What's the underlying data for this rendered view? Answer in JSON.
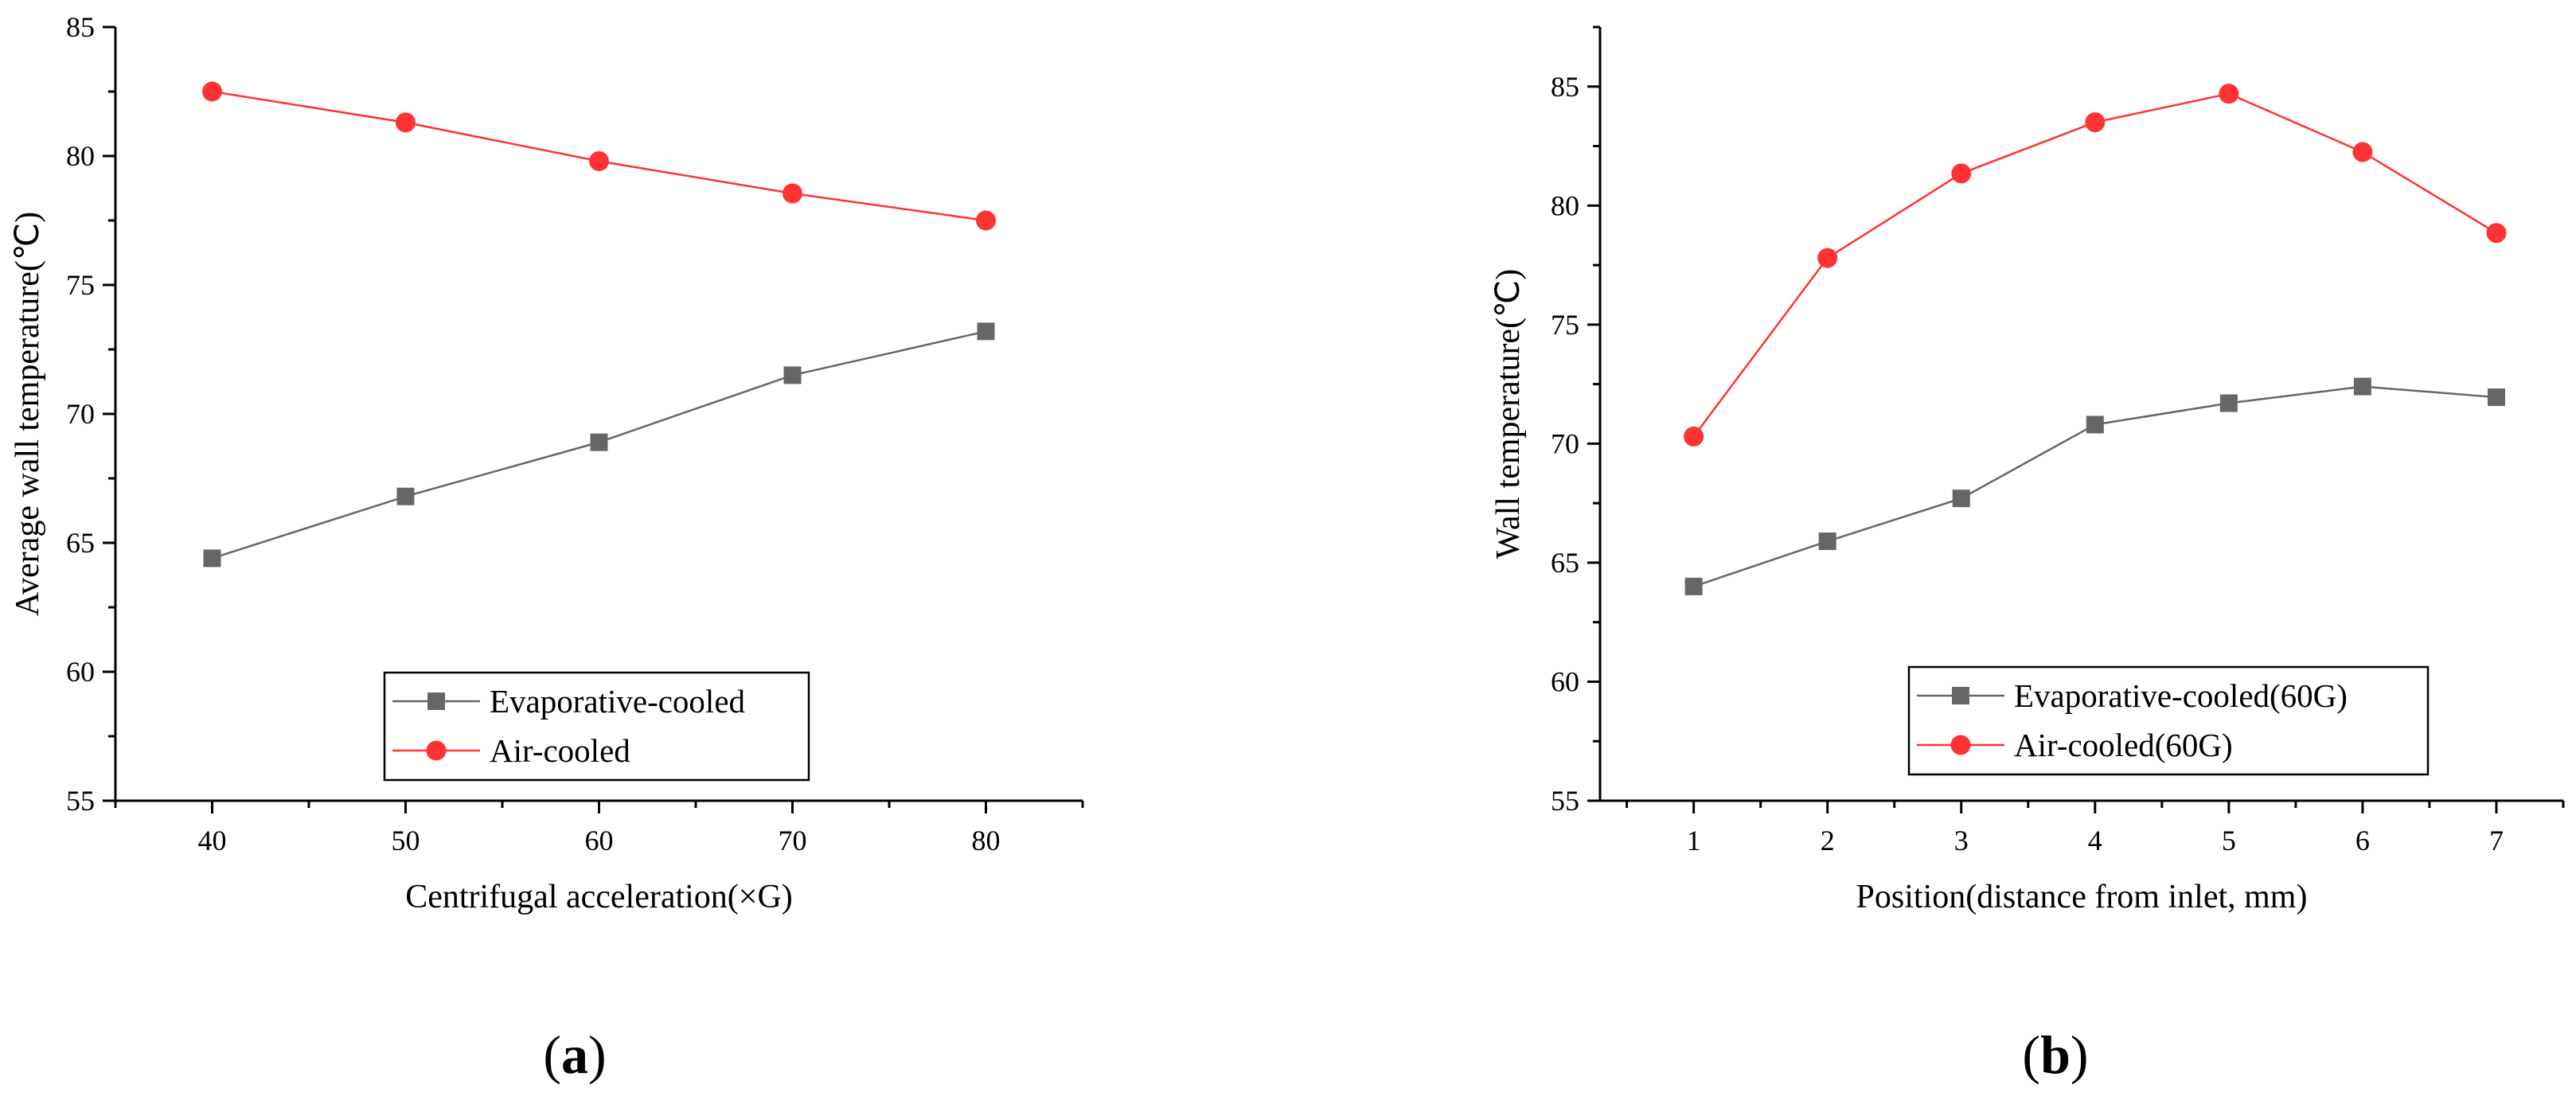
{
  "colors": {
    "evaporative": "#666666",
    "air": "#ff3333",
    "axis": "#000000"
  },
  "chart_data": [
    {
      "type": "line",
      "panel": "a",
      "panel_label": "a",
      "xlabel": "Centrifugal acceleration(×G)",
      "ylabel": "Average wall temperature(℃)",
      "xlim": [
        35,
        85
      ],
      "ylim": [
        55,
        85
      ],
      "xticks": [
        40,
        50,
        60,
        70,
        80
      ],
      "yticks": [
        55,
        60,
        65,
        70,
        75,
        80,
        85
      ],
      "legend_position": "bottom-center",
      "series": [
        {
          "name": "Evaporative-cooled",
          "marker": "square",
          "x": [
            40,
            50,
            60,
            70,
            80
          ],
          "values": [
            64.4,
            66.8,
            68.9,
            71.5,
            73.2
          ]
        },
        {
          "name": "Air-cooled",
          "marker": "circle",
          "x": [
            40,
            50,
            60,
            70,
            80
          ],
          "values": [
            82.5,
            81.3,
            79.8,
            78.55,
            77.5
          ]
        }
      ]
    },
    {
      "type": "line",
      "panel": "b",
      "panel_label": "b",
      "xlabel": "Position(distance from inlet, mm)",
      "ylabel": "Wall temperature(℃)",
      "xlim": [
        0.3,
        7.5
      ],
      "ylim": [
        55,
        87.5
      ],
      "xticks": [
        1,
        2,
        3,
        4,
        5,
        6,
        7
      ],
      "yticks": [
        55,
        60,
        65,
        70,
        75,
        80,
        85
      ],
      "legend_position": "bottom-right",
      "series": [
        {
          "name": "Evaporative-cooled(60G)",
          "marker": "square",
          "x": [
            1,
            2,
            3,
            4,
            5,
            6,
            7
          ],
          "values": [
            64.0,
            65.9,
            67.7,
            70.8,
            71.7,
            72.4,
            71.95
          ]
        },
        {
          "name": "Air-cooled(60G)",
          "marker": "circle",
          "x": [
            1,
            2,
            3,
            4,
            5,
            6,
            7
          ],
          "values": [
            70.3,
            77.8,
            81.35,
            83.5,
            84.7,
            82.25,
            78.85
          ]
        }
      ]
    }
  ]
}
